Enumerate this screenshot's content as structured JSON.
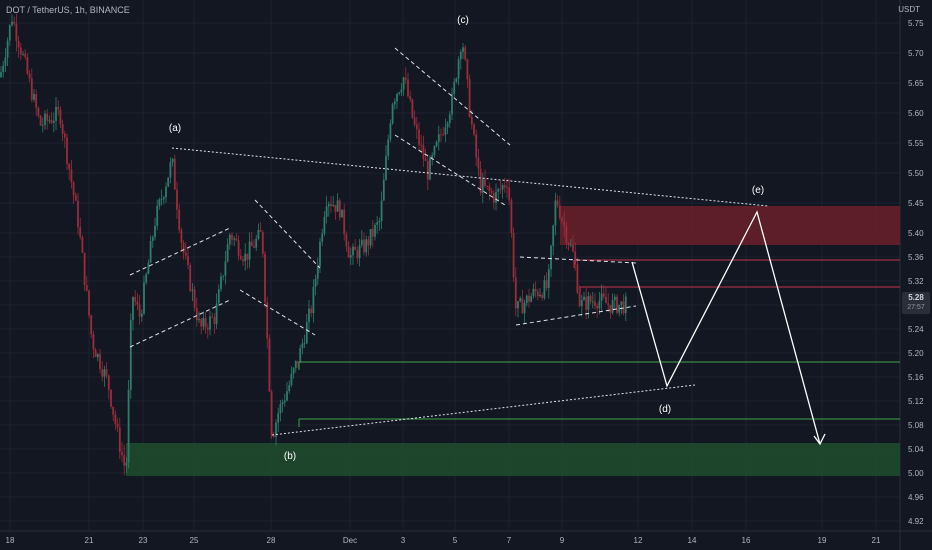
{
  "header": {
    "title": "DOT / TetherUS, 1h, BINANCE",
    "unit": "USDT"
  },
  "price_badge": {
    "price": "5.28",
    "countdown": "27:57"
  },
  "colors": {
    "background": "#131722",
    "grid": "#1e222d",
    "candle_up": "#2e7d6b",
    "candle_down": "#9b2c3a",
    "supply_zone": "#6b1f2a",
    "demand_zone": "#1f4a2e",
    "projection": "#ffffff"
  },
  "chart_data": {
    "type": "candlestick",
    "title": "DOT / TetherUS, 1h, BINANCE",
    "ylim": [
      4.9,
      5.78
    ],
    "y_ticks": [
      "5.75",
      "5.70",
      "5.65",
      "5.60",
      "5.55",
      "5.50",
      "5.45",
      "5.40",
      "5.36",
      "5.32",
      "5.28",
      "5.24",
      "5.20",
      "5.16",
      "5.12",
      "5.08",
      "5.04",
      "5.00",
      "4.96",
      "4.92"
    ],
    "x_ticks": [
      "18",
      "21",
      "23",
      "25",
      "28",
      "Dec",
      "3",
      "5",
      "7",
      "9",
      "12",
      "14",
      "16",
      "19",
      "21"
    ],
    "wave_labels": [
      {
        "label": "(a)",
        "date": "24",
        "price": 5.53
      },
      {
        "label": "(b)",
        "date": "28",
        "price": 5.06
      },
      {
        "label": "(c)",
        "date": "5",
        "price": 5.73
      },
      {
        "label": "(d)",
        "date": "13",
        "price": 5.14
      },
      {
        "label": "(e)",
        "date": "16",
        "price": 5.43
      }
    ],
    "zones": [
      {
        "type": "supply",
        "from": 5.38,
        "to": 5.445
      },
      {
        "type": "demand",
        "from": 4.995,
        "to": 5.05
      }
    ],
    "levels": [
      5.355,
      5.31,
      5.185,
      5.09
    ],
    "current_price": 5.28
  }
}
